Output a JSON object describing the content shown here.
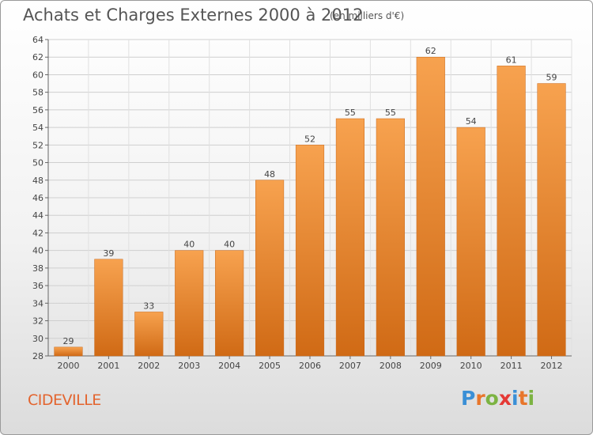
{
  "header": {
    "title": "Achats et Charges Externes 2000 à 2012",
    "subtitle": "(en milliers d'€)"
  },
  "footer": {
    "commune": "CIDEVILLE",
    "logo": {
      "letters": [
        "P",
        "r",
        "o",
        "x",
        "i",
        "t",
        "i"
      ],
      "colors": [
        "#3a8fd6",
        "#e8762b",
        "#7cb342",
        "#e53935",
        "#3a8fd6",
        "#e8762b",
        "#7cb342"
      ]
    }
  },
  "chart_data": {
    "type": "bar",
    "title": "Achats et Charges Externes 2000 à 2012",
    "categories": [
      "2000",
      "2001",
      "2002",
      "2003",
      "2004",
      "2005",
      "2006",
      "2007",
      "2008",
      "2009",
      "2010",
      "2011",
      "2012"
    ],
    "values": [
      29,
      39,
      33,
      40,
      40,
      48,
      52,
      55,
      55,
      62,
      54,
      61,
      59
    ],
    "ylim": [
      28,
      64
    ],
    "yticks": [
      28,
      30,
      32,
      34,
      36,
      38,
      40,
      42,
      44,
      46,
      48,
      50,
      52,
      54,
      56,
      58,
      60,
      62,
      64
    ],
    "grid": true,
    "bar_color": "#f0913a"
  }
}
